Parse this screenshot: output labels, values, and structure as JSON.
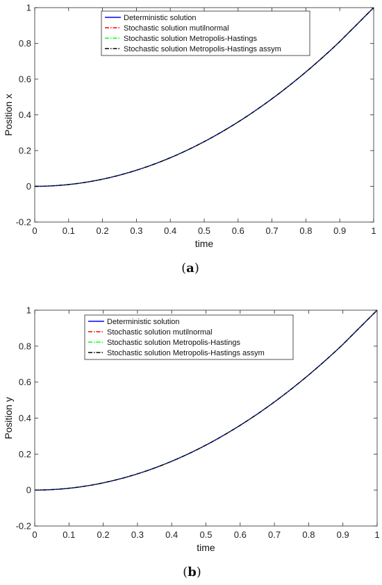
{
  "chart_data": [
    {
      "type": "line",
      "panel_label": "(a)",
      "xlabel": "time",
      "ylabel": "Position x",
      "xlim": [
        0,
        1
      ],
      "ylim": [
        -0.2,
        1
      ],
      "xticks": [
        "0",
        "0.1",
        "0.2",
        "0.3",
        "0.4",
        "0.5",
        "0.6",
        "0.7",
        "0.8",
        "0.9",
        "1"
      ],
      "yticks": [
        "-0.2",
        "0",
        "0.2",
        "0.4",
        "0.6",
        "0.8",
        "1"
      ],
      "grid": false,
      "legend_position": "top-center",
      "x": [
        0,
        0.1,
        0.2,
        0.3,
        0.4,
        0.5,
        0.6,
        0.7,
        0.8,
        0.9,
        1.0
      ],
      "series": [
        {
          "name": "Deterministic solution",
          "color": "#0000ff",
          "dash": "solid",
          "values": [
            0,
            0.01,
            0.04,
            0.09,
            0.16,
            0.25,
            0.36,
            0.49,
            0.64,
            0.81,
            1.0
          ]
        },
        {
          "name": "Stochastic solution mutilnormal",
          "color": "#ff0000",
          "dash": "dashdot",
          "values": [
            0,
            0.01,
            0.04,
            0.09,
            0.16,
            0.25,
            0.36,
            0.49,
            0.64,
            0.81,
            1.0
          ]
        },
        {
          "name": "Stochastic solution Metropolis-Hastings",
          "color": "#00ff00",
          "dash": "dashdot",
          "values": [
            0,
            0.01,
            0.04,
            0.09,
            0.16,
            0.25,
            0.36,
            0.49,
            0.64,
            0.81,
            1.0
          ]
        },
        {
          "name": "Stochastic solution Metropolis-Hastings assym",
          "color": "#000000",
          "dash": "dashdot",
          "values": [
            0,
            0.01,
            0.04,
            0.09,
            0.16,
            0.25,
            0.36,
            0.49,
            0.64,
            0.81,
            1.0
          ]
        }
      ]
    },
    {
      "type": "line",
      "panel_label": "(b)",
      "xlabel": "time",
      "ylabel": "Position y",
      "xlim": [
        0,
        1
      ],
      "ylim": [
        -0.2,
        1
      ],
      "xticks": [
        "0",
        "0.1",
        "0.2",
        "0.3",
        "0.4",
        "0.5",
        "0.6",
        "0.7",
        "0.8",
        "0.9",
        "1"
      ],
      "yticks": [
        "-0.2",
        "0",
        "0.2",
        "0.4",
        "0.6",
        "0.8",
        "1"
      ],
      "grid": false,
      "legend_position": "top-center",
      "x": [
        0,
        0.1,
        0.2,
        0.3,
        0.4,
        0.5,
        0.6,
        0.7,
        0.8,
        0.9,
        1.0
      ],
      "series": [
        {
          "name": "Deterministic solution",
          "color": "#0000ff",
          "dash": "solid",
          "values": [
            0,
            0.01,
            0.04,
            0.09,
            0.16,
            0.25,
            0.36,
            0.49,
            0.64,
            0.81,
            1.0
          ]
        },
        {
          "name": "Stochastic solution mutilnormal",
          "color": "#ff0000",
          "dash": "dashdot",
          "values": [
            0,
            0.01,
            0.04,
            0.09,
            0.16,
            0.25,
            0.36,
            0.49,
            0.64,
            0.81,
            1.0
          ]
        },
        {
          "name": "Stochastic solution Metropolis-Hastings",
          "color": "#00ff00",
          "dash": "dashdot",
          "values": [
            0,
            0.01,
            0.04,
            0.09,
            0.16,
            0.25,
            0.36,
            0.49,
            0.64,
            0.81,
            1.0
          ]
        },
        {
          "name": "Stochastic solution Metropolis-Hastings assym",
          "color": "#000000",
          "dash": "dashdot",
          "values": [
            0,
            0.01,
            0.04,
            0.09,
            0.16,
            0.25,
            0.36,
            0.49,
            0.64,
            0.81,
            1.0
          ]
        }
      ]
    }
  ]
}
